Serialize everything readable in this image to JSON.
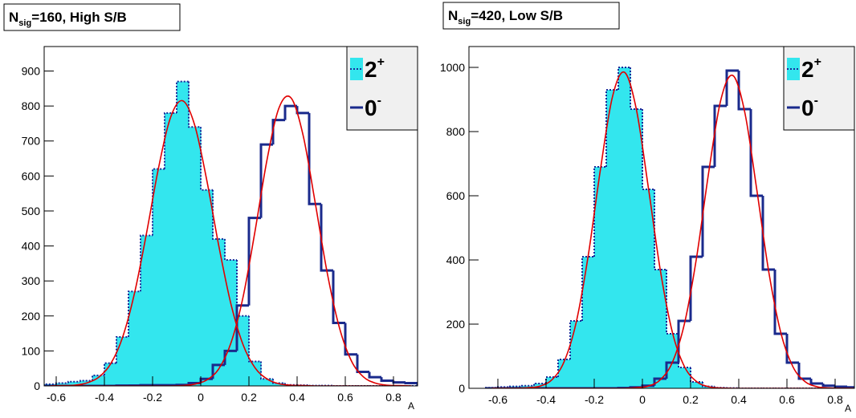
{
  "chart_data": [
    {
      "type": "histogram",
      "title": {
        "main": "N",
        "sub": "sig",
        "rest": "=160, High S/B"
      },
      "x_label": "A",
      "bins": [
        -0.65,
        -0.6,
        -0.55,
        -0.5,
        -0.45,
        -0.4,
        -0.35,
        -0.3,
        -0.25,
        -0.2,
        -0.15,
        -0.1,
        -0.05,
        0,
        0.05,
        0.1,
        0.15,
        0.2,
        0.25,
        0.3,
        0.35,
        0.4,
        0.45,
        0.5,
        0.55,
        0.6,
        0.65,
        0.7,
        0.75,
        0.8,
        0.85,
        0.9
      ],
      "xlim": [
        -0.65,
        0.9
      ],
      "xticks": [
        -0.6,
        -0.4,
        -0.2,
        0,
        0.2,
        0.4,
        0.6,
        0.8
      ],
      "ylim": [
        0,
        970
      ],
      "yticks": [
        0,
        100,
        200,
        300,
        400,
        500,
        600,
        700,
        800,
        900
      ],
      "legend": "top-right",
      "series": [
        {
          "name": "2",
          "name_sup": "+",
          "color": "#33e6ee",
          "edge_color": "#1a2a9a",
          "values": [
            5,
            8,
            12,
            15,
            30,
            65,
            140,
            270,
            430,
            620,
            780,
            870,
            740,
            560,
            420,
            360,
            200,
            70,
            20,
            8,
            3,
            2,
            1,
            1,
            0,
            0,
            0,
            0,
            0,
            0,
            0
          ]
        },
        {
          "name": "0",
          "name_sup": "-",
          "color": "#1a2a8c",
          "values": [
            0,
            0,
            0,
            0,
            0,
            0,
            1,
            1,
            2,
            2,
            2,
            3,
            8,
            20,
            60,
            100,
            230,
            480,
            690,
            760,
            800,
            780,
            520,
            330,
            180,
            90,
            40,
            25,
            15,
            10,
            8
          ]
        }
      ],
      "fits": [
        {
          "color": "#e00000",
          "x": [
            -0.625,
            -0.575,
            -0.525,
            -0.475,
            -0.425,
            -0.375,
            -0.325,
            -0.275,
            -0.225,
            -0.175,
            -0.125,
            -0.075,
            -0.025,
            0.025,
            0.075,
            0.125,
            0.175,
            0.225,
            0.275,
            0.325,
            0.375,
            0.425,
            0.475,
            0.525,
            0.575,
            0.625,
            0.675,
            0.725,
            0.775,
            0.825,
            0.875
          ],
          "values": [
            0,
            1,
            2,
            8,
            24,
            62,
            138,
            265,
            437,
            624,
            768,
            815,
            745,
            588,
            400,
            235,
            119,
            52,
            20,
            6,
            2,
            1,
            0,
            0,
            0,
            0,
            0,
            0,
            0,
            0,
            0
          ]
        },
        {
          "color": "#e00000",
          "x": [
            -0.625,
            -0.575,
            -0.525,
            -0.475,
            -0.425,
            -0.375,
            -0.325,
            -0.275,
            -0.225,
            -0.175,
            -0.125,
            -0.075,
            -0.025,
            0.025,
            0.075,
            0.125,
            0.175,
            0.225,
            0.275,
            0.325,
            0.375,
            0.425,
            0.475,
            0.525,
            0.575,
            0.625,
            0.675,
            0.725,
            0.775,
            0.825,
            0.875
          ],
          "values": [
            0,
            0,
            0,
            0,
            0,
            0,
            0,
            0,
            0,
            0,
            0,
            1,
            5,
            17,
            49,
            122,
            252,
            441,
            646,
            795,
            823,
            716,
            524,
            323,
            168,
            72,
            26,
            8,
            2,
            1,
            0
          ]
        }
      ]
    },
    {
      "type": "histogram",
      "title": {
        "main": "N",
        "sub": "sig",
        "rest": "=420, Low S/B"
      },
      "x_label": "A",
      "bins": [
        -0.65,
        -0.6,
        -0.55,
        -0.5,
        -0.45,
        -0.4,
        -0.35,
        -0.3,
        -0.25,
        -0.2,
        -0.15,
        -0.1,
        -0.05,
        0,
        0.05,
        0.1,
        0.15,
        0.2,
        0.25,
        0.3,
        0.35,
        0.4,
        0.45,
        0.5,
        0.55,
        0.6,
        0.65,
        0.7,
        0.75,
        0.8,
        0.85,
        0.9
      ],
      "xlim": [
        -0.72,
        0.88
      ],
      "xticks": [
        -0.6,
        -0.4,
        -0.2,
        0,
        0.2,
        0.4,
        0.6,
        0.8
      ],
      "ylim": [
        0,
        1065
      ],
      "yticks": [
        0,
        200,
        400,
        600,
        800,
        1000
      ],
      "legend": "top-right",
      "series": [
        {
          "name": "2",
          "name_sup": "+",
          "color": "#33e6ee",
          "edge_color": "#1a2a9a",
          "values": [
            2,
            4,
            6,
            8,
            15,
            35,
            90,
            210,
            410,
            690,
            930,
            1000,
            870,
            620,
            370,
            170,
            65,
            20,
            6,
            2,
            1,
            0,
            0,
            0,
            0,
            0,
            0,
            0,
            0,
            0,
            0
          ]
        },
        {
          "name": "0",
          "name_sup": "-",
          "color": "#1a2a8c",
          "values": [
            0,
            0,
            0,
            0,
            0,
            0,
            0,
            0,
            0,
            0,
            0,
            1,
            3,
            8,
            30,
            80,
            210,
            410,
            690,
            880,
            990,
            870,
            600,
            370,
            170,
            80,
            30,
            15,
            8,
            5,
            3
          ]
        }
      ],
      "fits": [
        {
          "color": "#e00000",
          "x": [
            -0.625,
            -0.575,
            -0.525,
            -0.475,
            -0.425,
            -0.375,
            -0.325,
            -0.275,
            -0.225,
            -0.175,
            -0.125,
            -0.075,
            -0.025,
            0.025,
            0.075,
            0.125,
            0.175,
            0.225,
            0.275,
            0.325,
            0.375,
            0.425,
            0.475,
            0.525,
            0.575,
            0.625,
            0.675,
            0.725,
            0.775,
            0.825,
            0.875
          ],
          "values": [
            0,
            0,
            0,
            2,
            7,
            27,
            83,
            205,
            413,
            678,
            906,
            985,
            869,
            624,
            365,
            173,
            67,
            21,
            5,
            1,
            0,
            0,
            0,
            0,
            0,
            0,
            0,
            0,
            0,
            0,
            0
          ]
        },
        {
          "color": "#e00000",
          "x": [
            -0.625,
            -0.575,
            -0.525,
            -0.475,
            -0.425,
            -0.375,
            -0.325,
            -0.275,
            -0.225,
            -0.175,
            -0.125,
            -0.075,
            -0.025,
            0.025,
            0.075,
            0.125,
            0.175,
            0.225,
            0.275,
            0.325,
            0.375,
            0.425,
            0.475,
            0.525,
            0.575,
            0.625,
            0.675,
            0.725,
            0.775,
            0.825,
            0.875
          ],
          "values": [
            0,
            0,
            0,
            0,
            0,
            0,
            0,
            0,
            0,
            0,
            0,
            0,
            2,
            7,
            27,
            82,
            203,
            408,
            672,
            897,
            975,
            860,
            618,
            361,
            172,
            67,
            21,
            5,
            1,
            0,
            0
          ]
        }
      ]
    }
  ]
}
